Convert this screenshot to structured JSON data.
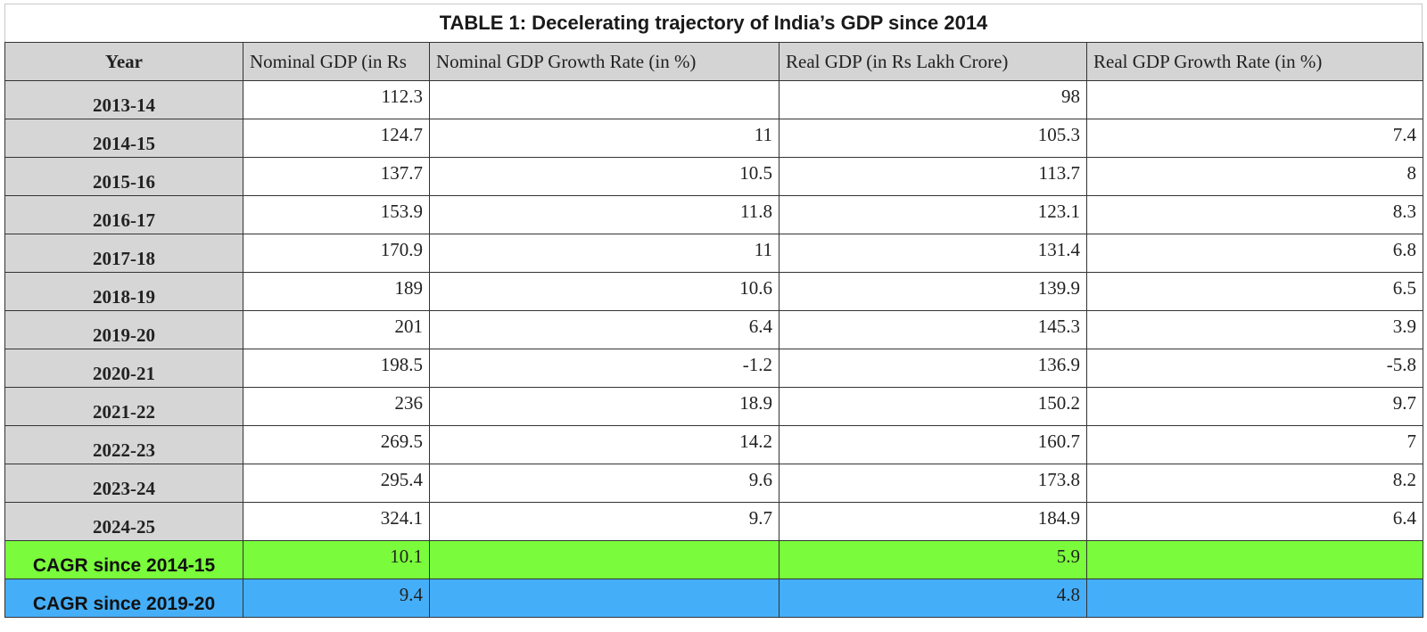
{
  "title": "TABLE 1: Decelerating trajectory of India’s GDP since 2014",
  "columns": [
    "Year",
    "Nominal GDP (in Rs",
    "Nominal GDP Growth Rate (in %)",
    "Real GDP  (in Rs Lakh Crore)",
    "Real GDP Growth Rate (in %)"
  ],
  "rows": [
    {
      "year": "2013-14",
      "nominal_gdp": "112.3",
      "nominal_growth": "",
      "real_gdp": "98",
      "real_growth": ""
    },
    {
      "year": "2014-15",
      "nominal_gdp": "124.7",
      "nominal_growth": "11",
      "real_gdp": "105.3",
      "real_growth": "7.4"
    },
    {
      "year": "2015-16",
      "nominal_gdp": "137.7",
      "nominal_growth": "10.5",
      "real_gdp": "113.7",
      "real_growth": "8"
    },
    {
      "year": "2016-17",
      "nominal_gdp": "153.9",
      "nominal_growth": "11.8",
      "real_gdp": "123.1",
      "real_growth": "8.3"
    },
    {
      "year": "2017-18",
      "nominal_gdp": "170.9",
      "nominal_growth": "11",
      "real_gdp": "131.4",
      "real_growth": "6.8"
    },
    {
      "year": "2018-19",
      "nominal_gdp": "189",
      "nominal_growth": "10.6",
      "real_gdp": "139.9",
      "real_growth": "6.5"
    },
    {
      "year": "2019-20",
      "nominal_gdp": "201",
      "nominal_growth": "6.4",
      "real_gdp": "145.3",
      "real_growth": "3.9"
    },
    {
      "year": "2020-21",
      "nominal_gdp": "198.5",
      "nominal_growth": "-1.2",
      "real_gdp": "136.9",
      "real_growth": "-5.8"
    },
    {
      "year": "2021-22",
      "nominal_gdp": "236",
      "nominal_growth": "18.9",
      "real_gdp": "150.2",
      "real_growth": "9.7"
    },
    {
      "year": "2022-23",
      "nominal_gdp": "269.5",
      "nominal_growth": "14.2",
      "real_gdp": "160.7",
      "real_growth": "7"
    },
    {
      "year": "2023-24",
      "nominal_gdp": "295.4",
      "nominal_growth": "9.6",
      "real_gdp": "173.8",
      "real_growth": "8.2"
    },
    {
      "year": "2024-25",
      "nominal_gdp": "324.1",
      "nominal_growth": "9.7",
      "real_gdp": "184.9",
      "real_growth": "6.4"
    }
  ],
  "summary": [
    {
      "label": "CAGR since 2014-15",
      "nominal_gdp": "10.1",
      "nominal_growth": "",
      "real_gdp": "5.9",
      "real_growth": "",
      "color": "#7afc3c"
    },
    {
      "label": "CAGR since 2019-20",
      "nominal_gdp": "9.4",
      "nominal_growth": "",
      "real_gdp": "4.8",
      "real_growth": "",
      "color": "#45aef8"
    }
  ],
  "colors": {
    "header_bg": "#d4d4d4",
    "year_bg": "#d6d6d6",
    "cagr_2014_bg": "#7afc3c",
    "cagr_2019_bg": "#45aef8"
  }
}
